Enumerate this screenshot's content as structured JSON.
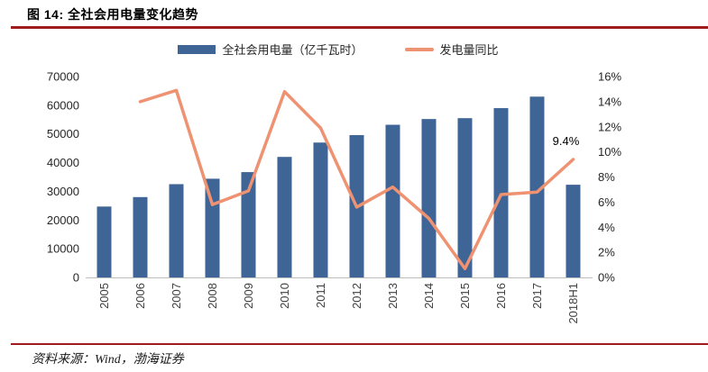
{
  "header": {
    "title": "图 14:  全社会用电量变化趋势"
  },
  "legend": [
    {
      "label": "全社会用电量（亿千瓦时）",
      "type": "bar",
      "color": "#3E6595"
    },
    {
      "label": "发电量同比",
      "type": "line",
      "color": "#EE9272"
    }
  ],
  "chart_data": {
    "type": "bar+line",
    "title": "全社会用电量变化趋势",
    "categories": [
      "2005",
      "2006",
      "2007",
      "2008",
      "2009",
      "2010",
      "2011",
      "2012",
      "2013",
      "2014",
      "2015",
      "2016",
      "2017",
      "2018H1"
    ],
    "series": [
      {
        "name": "全社会用电量（亿千瓦时）",
        "type": "bar",
        "axis": "left",
        "color": "#3E6595",
        "values": [
          24700,
          28000,
          32500,
          34400,
          36700,
          42000,
          47000,
          49600,
          53200,
          55200,
          55500,
          59000,
          63000,
          32300
        ]
      },
      {
        "name": "发电量同比",
        "type": "line",
        "axis": "right",
        "color": "#EE9272",
        "values": [
          null,
          14.0,
          14.9,
          5.8,
          6.9,
          14.8,
          11.9,
          5.6,
          7.2,
          4.7,
          0.7,
          6.6,
          6.8,
          9.4
        ]
      }
    ],
    "left_axis": {
      "min": 0,
      "max": 70000,
      "step": 10000,
      "ticks": [
        "0",
        "10000",
        "20000",
        "30000",
        "40000",
        "50000",
        "60000",
        "70000"
      ]
    },
    "right_axis": {
      "min": 0,
      "max": 16,
      "step": 2,
      "suffix": "%",
      "ticks": [
        "0%",
        "2%",
        "4%",
        "6%",
        "8%",
        "10%",
        "12%",
        "14%",
        "16%"
      ]
    },
    "annotation": {
      "text": "9.4%",
      "category": "2018H1",
      "value": 9.4
    },
    "grid": false,
    "legend_position": "top"
  },
  "footer": {
    "source": "资料来源：Wind，渤海证券"
  },
  "colors": {
    "rule_red": "#9E1C1C",
    "bar_blue": "#3E6595",
    "line_orange": "#EE9272",
    "axis_line": "#BFBFBF",
    "tick_text": "#262626"
  }
}
